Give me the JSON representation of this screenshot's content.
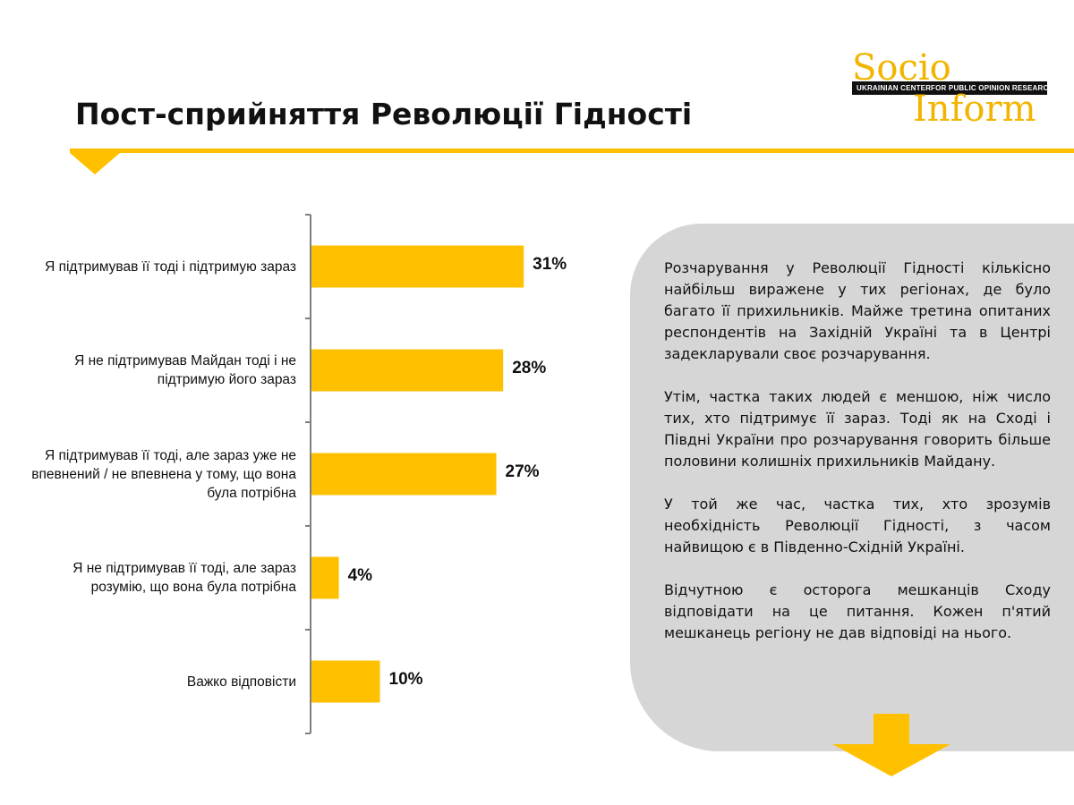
{
  "header": {
    "title": "Пост-сприйняття Революції Гідності"
  },
  "logo": {
    "word_top": "Socio",
    "word_bottom": "Inform",
    "band_left": "UKRAINIAN CENTER",
    "band_right": "FOR PUBLIC OPINION RESEARCH"
  },
  "colors": {
    "accent": "#FFC000",
    "panel": "#D7D6D6",
    "axis": "#7f7f7f"
  },
  "chart_data": {
    "type": "bar",
    "orientation": "horizontal",
    "categories": [
      "Я підтримував її тоді і підтримую зараз",
      "Я не підтримував Майдан тоді і не підтримую його зараз",
      "Я підтримував її тоді, але зараз уже не впевнений / не впевнена у тому, що вона була потрібна",
      "Я не підтримував її тоді, але зараз розумію, що вона була потрібна",
      "Важко відповісти"
    ],
    "values": [
      31,
      28,
      27,
      4,
      10
    ],
    "value_labels": [
      "31%",
      "28%",
      "27%",
      "4%",
      "10%"
    ],
    "xlim": [
      0,
      100
    ],
    "grid": false
  },
  "panel": {
    "paragraphs": [
      "Розчарування у Революції Гідності кількісно найбільш виражене у тих регіонах, де було багато її прихильників. Майже третина опитаних респондентів на Західній Україні та в Центрі задекларували своє розчарування.",
      "Утім, частка таких людей є меншою, ніж число тих, хто підтримує її зараз. Тоді як на Сході і Півдні України про розчарування говорить більше половини колишніх прихильників Майдану.",
      "У той же час, частка тих, хто зрозумів необхідність Революції Гідності, з часом найвищою є в Південно-Східній Україні.",
      "Відчутною є осторога мешканців Сходу відповідати на це питання. Кожен п'ятий мешканець регіону не дав відповіді на нього."
    ]
  }
}
